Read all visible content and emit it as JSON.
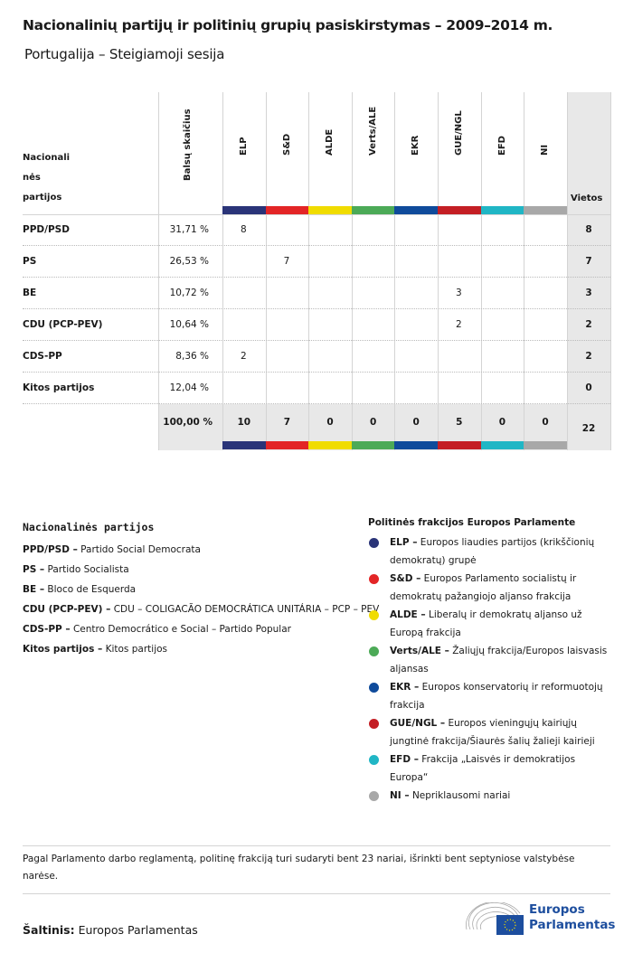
{
  "title": "Nacionalinių partijų ir politinių grupių pasiskirstymas – 2009–2014 m.",
  "subtitle": "Portugalija – Steigiamoji sesija",
  "table": {
    "party_header": [
      "Nacionali",
      "nės",
      "partijos"
    ],
    "votes_header": "Balsų skaičius",
    "seats_header": "Vietos",
    "groups": [
      {
        "label": "ELP",
        "color": "#2a3478"
      },
      {
        "label": "S&D",
        "color": "#e32526"
      },
      {
        "label": "ALDE",
        "color": "#f0dc00"
      },
      {
        "label": "Verts/ALE",
        "color": "#4caa57"
      },
      {
        "label": "EKR",
        "color": "#0f4b9b"
      },
      {
        "label": "GUE/NGL",
        "color": "#c41e24"
      },
      {
        "label": "EFD",
        "color": "#20b6c5"
      },
      {
        "label": "NI",
        "color": "#a8a8a8"
      }
    ],
    "rows": [
      {
        "party": "PPD/PSD",
        "votes": "31,71 %",
        "cells": [
          "8",
          "",
          "",
          "",
          "",
          "",
          "",
          ""
        ],
        "seats": "8"
      },
      {
        "party": "PS",
        "votes": "26,53 %",
        "cells": [
          "",
          "7",
          "",
          "",
          "",
          "",
          "",
          ""
        ],
        "seats": "7"
      },
      {
        "party": "BE",
        "votes": "10,72 %",
        "cells": [
          "",
          "",
          "",
          "",
          "",
          "3",
          "",
          ""
        ],
        "seats": "3"
      },
      {
        "party": "CDU (PCP-PEV)",
        "votes": "10,64 %",
        "cells": [
          "",
          "",
          "",
          "",
          "",
          "2",
          "",
          ""
        ],
        "seats": "2"
      },
      {
        "party": "CDS-PP",
        "votes": "8,36 %",
        "cells": [
          "2",
          "",
          "",
          "",
          "",
          "",
          "",
          ""
        ],
        "seats": "2"
      },
      {
        "party": "Kitos partijos",
        "votes": "12,04 %",
        "cells": [
          "",
          "",
          "",
          "",
          "",
          "",
          "",
          ""
        ],
        "seats": "0"
      }
    ],
    "totals": {
      "votes": "100,00 %",
      "cells": [
        "10",
        "7",
        "0",
        "0",
        "0",
        "5",
        "0",
        "0"
      ],
      "seats": "22"
    }
  },
  "legend_parties": {
    "title": "Nacionalinės partijos",
    "items": [
      {
        "abbr": "PPD/PSD –",
        "name": " Partido Social Democrata"
      },
      {
        "abbr": "PS –",
        "name": " Partido Socialista"
      },
      {
        "abbr": "BE –",
        "name": " Bloco de Esquerda"
      },
      {
        "abbr": "CDU (PCP-PEV) –",
        "name": " CDU – COLIGACÃO DEMOCRÁTICA UNITÁRIA – PCP – PEV"
      },
      {
        "abbr": "CDS-PP –",
        "name": " Centro Democrático e Social – Partido Popular"
      },
      {
        "abbr": "Kitos partijos –",
        "name": " Kitos partijos"
      }
    ]
  },
  "legend_groups": {
    "title": "Politinės frakcijos Europos Parlamente",
    "items": [
      {
        "abbr": "ELP –",
        "name": " Europos liaudies partijos (krikščionių demokratų) grupė",
        "color": "#2a3478"
      },
      {
        "abbr": "S&D –",
        "name": " Europos Parlamento socialistų ir demokratų pažangiojo aljanso frakcija",
        "color": "#e32526"
      },
      {
        "abbr": "ALDE –",
        "name": " Liberalų ir demokratų aljanso už Europą frakcija",
        "color": "#f0dc00"
      },
      {
        "abbr": "Verts/ALE –",
        "name": " Žaliųjų frakcija/Europos laisvasis aljansas",
        "color": "#4caa57"
      },
      {
        "abbr": "EKR –",
        "name": " Europos konservatorių ir reformuotojų frakcija",
        "color": "#0f4b9b"
      },
      {
        "abbr": "GUE/NGL –",
        "name": " Europos vieningųjų kairiųjų jungtinė frakcija/Šiaurės šalių žalieji kairieji",
        "color": "#c41e24"
      },
      {
        "abbr": "EFD –",
        "name": " Frakcija „Laisvės ir demokratijos Europa“",
        "color": "#20b6c5"
      },
      {
        "abbr": "NI –",
        "name": " Nepriklausomi nariai",
        "color": "#a8a8a8"
      }
    ]
  },
  "note": "Pagal Parlamento darbo reglamentą, politinę frakciją turi sudaryti bent 23 nariai, išrinkti bent septyniose valstybėse narėse.",
  "source": {
    "label": "Šaltinis:",
    "value": " Europos Parlamentas"
  },
  "logo": {
    "line1": "Europos",
    "line2": "Parlamentas"
  }
}
